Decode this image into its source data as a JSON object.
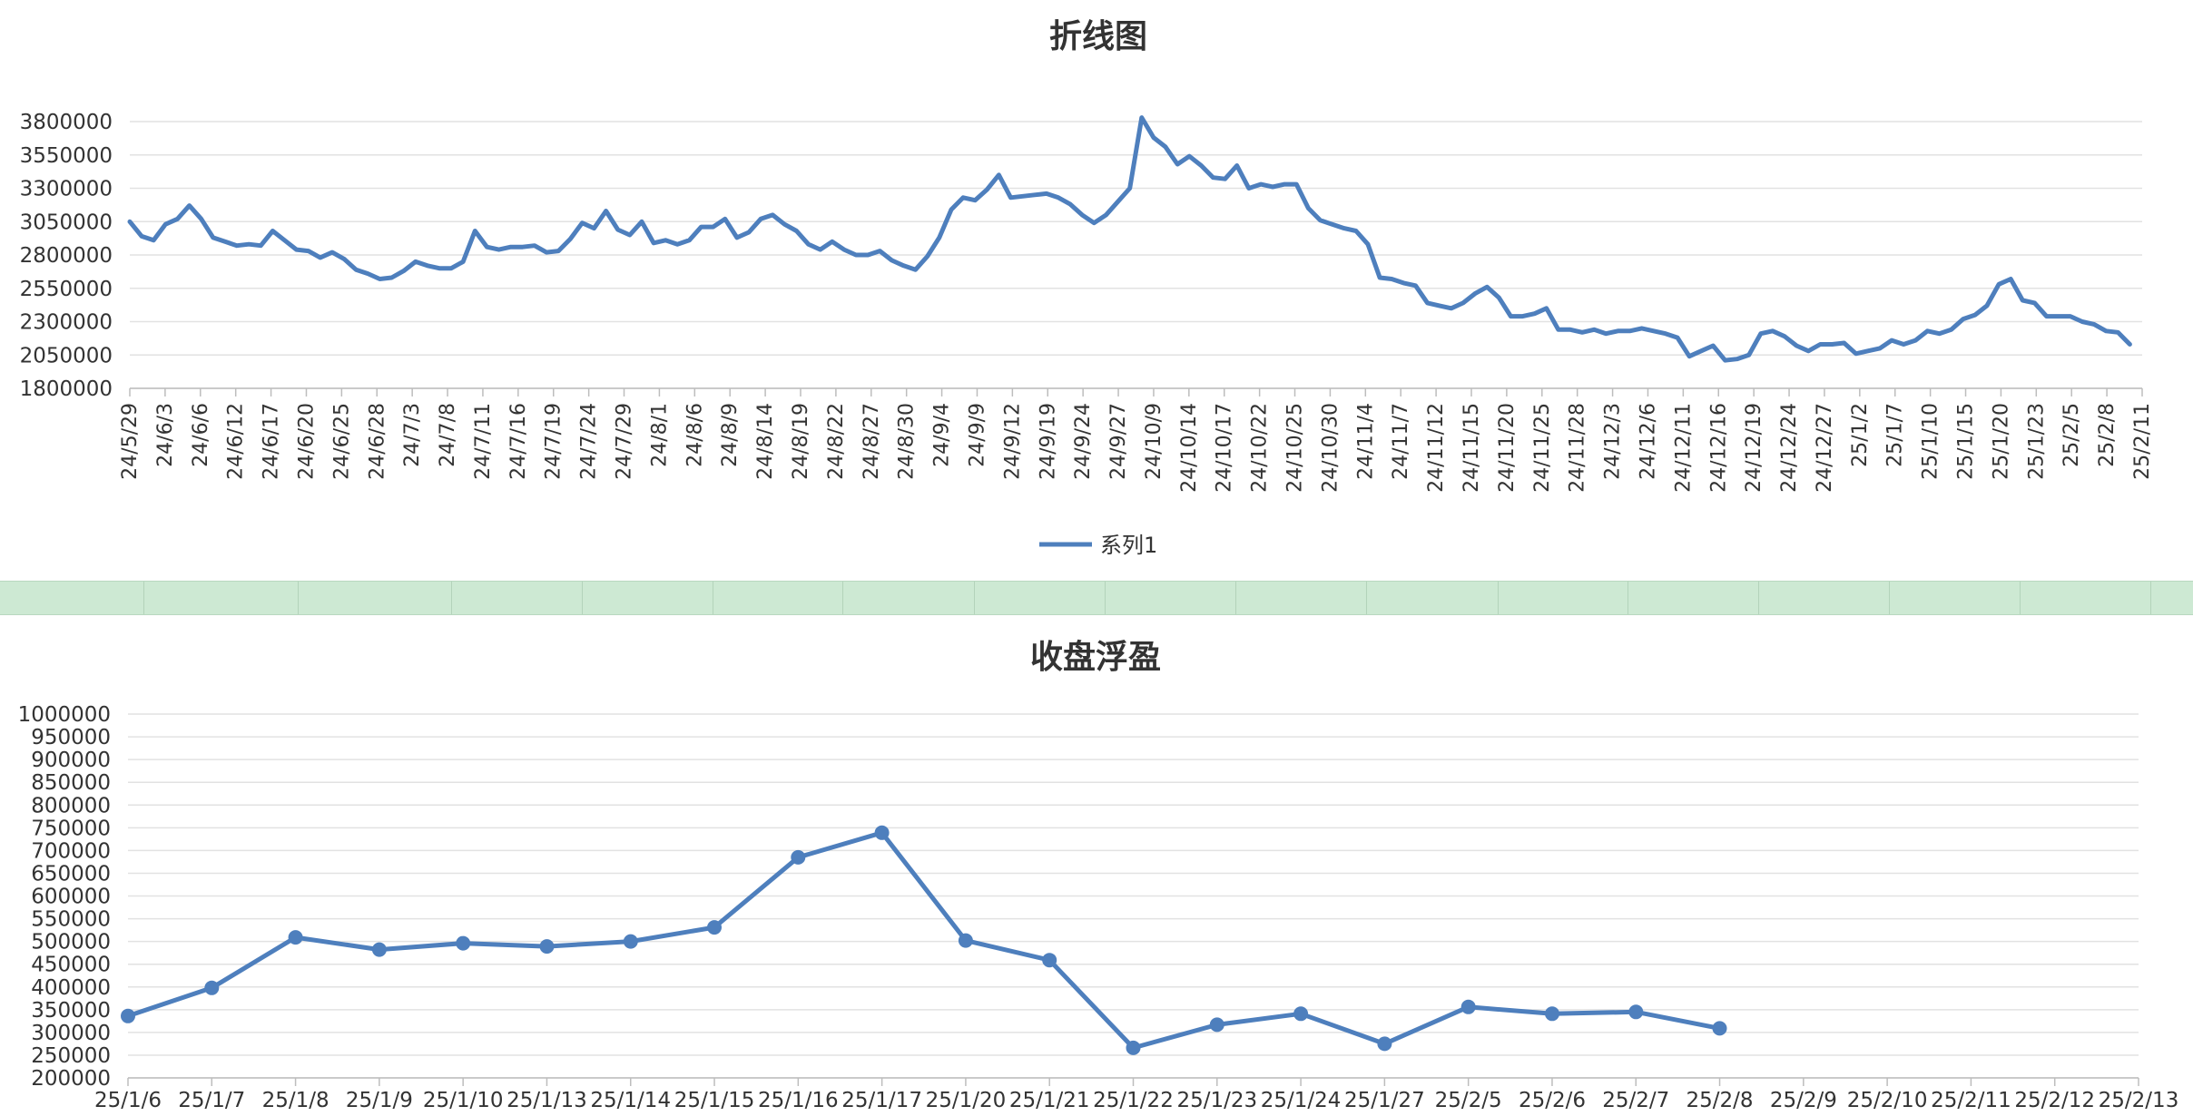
{
  "charts": [
    {
      "id": "chart1",
      "type": "line",
      "title": "折线图",
      "legend": {
        "position": "bottom",
        "entries": [
          "系列1"
        ]
      },
      "color": "#4e7fbd",
      "grid": true,
      "yticks": [
        "3800000",
        "3550000",
        "3300000",
        "3050000",
        "2800000",
        "2550000",
        "2300000",
        "2050000",
        "1800000"
      ],
      "ylim": [
        1800000,
        3800000
      ],
      "xticks": [
        "24/5/29",
        "24/6/3",
        "24/6/6",
        "24/6/12",
        "24/6/17",
        "24/6/20",
        "24/6/25",
        "24/6/28",
        "24/7/3",
        "24/7/8",
        "24/7/11",
        "24/7/16",
        "24/7/19",
        "24/7/24",
        "24/7/29",
        "24/8/1",
        "24/8/6",
        "24/8/9",
        "24/8/14",
        "24/8/19",
        "24/8/22",
        "24/8/27",
        "24/8/30",
        "24/9/4",
        "24/9/9",
        "24/9/12",
        "24/9/19",
        "24/9/24",
        "24/9/27",
        "24/10/9",
        "24/10/14",
        "24/10/17",
        "24/10/22",
        "24/10/25",
        "24/10/30",
        "24/11/4",
        "24/11/7",
        "24/11/12",
        "24/11/15",
        "24/11/20",
        "24/11/25",
        "24/11/28",
        "24/12/3",
        "24/12/6",
        "24/12/11",
        "24/12/16",
        "24/12/19",
        "24/12/24",
        "24/12/27",
        "25/1/2",
        "25/1/7",
        "25/1/10",
        "25/1/15",
        "25/1/20",
        "25/1/23",
        "25/2/5",
        "25/2/8",
        "25/2/11"
      ],
      "series": [
        {
          "name": "系列1",
          "values": [
            3050000,
            2940000,
            2910000,
            3030000,
            3070000,
            3170000,
            3070000,
            2930000,
            2900000,
            2870000,
            2880000,
            2870000,
            2980000,
            2910000,
            2840000,
            2830000,
            2780000,
            2820000,
            2770000,
            2690000,
            2660000,
            2620000,
            2630000,
            2680000,
            2750000,
            2720000,
            2700000,
            2700000,
            2750000,
            2980000,
            2860000,
            2840000,
            2860000,
            2860000,
            2870000,
            2820000,
            2830000,
            2920000,
            3040000,
            3000000,
            3130000,
            2990000,
            2950000,
            3050000,
            2890000,
            2910000,
            2880000,
            2910000,
            3010000,
            3010000,
            3070000,
            2930000,
            2970000,
            3070000,
            3100000,
            3030000,
            2980000,
            2880000,
            2840000,
            2900000,
            2840000,
            2800000,
            2800000,
            2830000,
            2760000,
            2720000,
            2690000,
            2790000,
            2930000,
            3140000,
            3230000,
            3210000,
            3290000,
            3400000,
            3230000,
            3240000,
            3250000,
            3260000,
            3230000,
            3180000,
            3100000,
            3040000,
            3100000,
            3200000,
            3300000,
            3830000,
            3680000,
            3610000,
            3480000,
            3540000,
            3470000,
            3380000,
            3370000,
            3470000,
            3300000,
            3330000,
            3310000,
            3330000,
            3330000,
            3150000,
            3060000,
            3030000,
            3000000,
            2980000,
            2880000,
            2630000,
            2620000,
            2590000,
            2570000,
            2440000,
            2420000,
            2400000,
            2440000,
            2510000,
            2560000,
            2480000,
            2340000,
            2340000,
            2360000,
            2400000,
            2240000,
            2240000,
            2220000,
            2240000,
            2210000,
            2230000,
            2230000,
            2250000,
            2230000,
            2210000,
            2180000,
            2040000,
            2080000,
            2120000,
            2010000,
            2020000,
            2050000,
            2210000,
            2230000,
            2190000,
            2120000,
            2080000,
            2130000,
            2130000,
            2140000,
            2060000,
            2080000,
            2100000,
            2160000,
            2130000,
            2160000,
            2230000,
            2210000,
            2240000,
            2320000,
            2350000,
            2420000,
            2580000,
            2620000,
            2460000,
            2440000,
            2340000,
            2340000,
            2340000,
            2300000,
            2280000,
            2230000,
            2220000,
            2130000
          ]
        }
      ]
    },
    {
      "id": "chart2",
      "type": "line",
      "title": "收盘浮盈",
      "color": "#4e7fbd",
      "grid": true,
      "markers": true,
      "yticks": [
        "1000000",
        "950000",
        "900000",
        "850000",
        "800000",
        "750000",
        "700000",
        "650000",
        "600000",
        "550000",
        "500000",
        "450000",
        "400000",
        "350000",
        "300000",
        "250000",
        "200000"
      ],
      "ylim": [
        200000,
        1000000
      ],
      "categories": [
        "25/1/6",
        "25/1/7",
        "25/1/8",
        "25/1/9",
        "25/1/10",
        "25/1/13",
        "25/1/14",
        "25/1/15",
        "25/1/16",
        "25/1/17",
        "25/1/20",
        "25/1/21",
        "25/1/22",
        "25/1/23",
        "25/1/24",
        "25/1/27",
        "25/2/5",
        "25/2/6",
        "25/2/7",
        "25/2/8",
        "25/2/9",
        "25/2/10",
        "25/2/11",
        "25/2/12",
        "25/2/13"
      ],
      "series": [
        {
          "values": [
            336000,
            398000,
            509000,
            482000,
            496000,
            489000,
            500000,
            531000,
            685000,
            739000,
            502000,
            459000,
            266000,
            317000,
            341000,
            275000,
            356000,
            341000,
            345000,
            309000,
            null,
            null,
            null,
            null,
            null
          ]
        }
      ]
    }
  ]
}
